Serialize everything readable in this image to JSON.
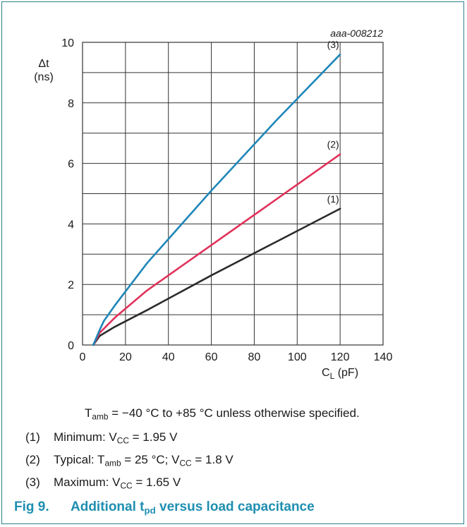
{
  "figure": {
    "doc_code": "aaa-008212",
    "caption_label": "Fig 9.",
    "caption_pre": "Additional t",
    "caption_sub": "pd",
    "caption_post": " versus load capacitance"
  },
  "conditions": {
    "t_main": "T",
    "t_sub": "amb",
    "t_rest": " = −40 °C to +85 °C unless otherwise specified."
  },
  "notes": [
    {
      "num": "(1)",
      "parts": [
        {
          "t": "Minimum: V"
        },
        {
          "s": "CC"
        },
        {
          "t": " = 1.95 V"
        }
      ]
    },
    {
      "num": "(2)",
      "parts": [
        {
          "t": "Typical: T"
        },
        {
          "s": "amb"
        },
        {
          "t": " = 25 °C; V"
        },
        {
          "s": "CC"
        },
        {
          "t": " = 1.8 V"
        }
      ]
    },
    {
      "num": "(3)",
      "parts": [
        {
          "t": "Maximum: V"
        },
        {
          "s": "CC"
        },
        {
          "t": " = 1.65 V"
        }
      ]
    }
  ],
  "chart_data": {
    "type": "line",
    "ylabel_line1": "Δt",
    "ylabel_line2": "(ns)",
    "xlabel_main": "C",
    "xlabel_sub": "L",
    "xlabel_unit": " (pF)",
    "xlim": [
      0,
      140
    ],
    "ylim": [
      0,
      10
    ],
    "x_ticks": [
      0,
      20,
      40,
      60,
      80,
      100,
      120,
      140
    ],
    "y_ticks": [
      0,
      2,
      4,
      6,
      8,
      10
    ],
    "grid": true,
    "series": [
      {
        "name": "(1)",
        "color": "#2b2b2b",
        "x": [
          5,
          8,
          15,
          30,
          60,
          90,
          120
        ],
        "y": [
          0,
          0.3,
          0.6,
          1.15,
          2.3,
          3.4,
          4.5
        ]
      },
      {
        "name": "(2)",
        "color": "#e0325a",
        "x": [
          5,
          8,
          15,
          30,
          60,
          90,
          120
        ],
        "y": [
          0,
          0.4,
          0.9,
          1.8,
          3.3,
          4.8,
          6.3
        ]
      },
      {
        "name": "(3)",
        "color": "#1e86b8",
        "x": [
          5,
          8,
          10,
          15,
          30,
          60,
          90,
          120
        ],
        "y": [
          0,
          0.5,
          0.8,
          1.3,
          2.7,
          5.1,
          7.4,
          9.6
        ]
      }
    ]
  }
}
